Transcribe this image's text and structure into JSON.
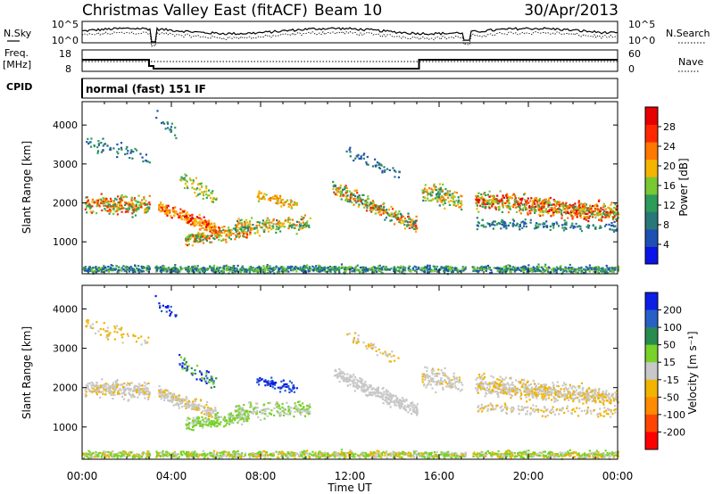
{
  "header": {
    "title": "Christmas Valley East (fitACF)",
    "beam": "Beam 10",
    "date": "30/Apr/2013"
  },
  "noise_panel": {
    "left_label": "N.Sky",
    "right_label": "N.Search",
    "left_ticks": [
      "10^5",
      "10^0"
    ],
    "right_ticks": [
      "10^5",
      "10^0"
    ]
  },
  "freq_panel": {
    "left_label_1": "Freq.",
    "left_label_2": "[MHz]",
    "right_label": "Nave",
    "left_ticks": [
      "18",
      "8"
    ],
    "right_ticks": [
      "60",
      "0"
    ]
  },
  "cpid": {
    "label": "CPID",
    "value": "normal (fast) 151 IF"
  },
  "colors": {
    "power_scale": [
      "#0a14e6",
      "#1e50b4",
      "#287878",
      "#2d9b5a",
      "#78c832",
      "#f5b400",
      "#ff7800",
      "#ff2800",
      "#e60000"
    ],
    "velocity_scale": [
      "#0a1ee6",
      "#2860c8",
      "#288c50",
      "#78d228",
      "#c8c8c8",
      "#f0b400",
      "#ff8c00",
      "#ff4600",
      "#ff0000"
    ]
  },
  "chart_data": [
    {
      "type": "heatmap",
      "title": "",
      "xlabel": "Time UT",
      "ylabel": "Slant Range [km]",
      "x_ticks": [
        "00:00",
        "04:00",
        "08:00",
        "12:00",
        "16:00",
        "20:00",
        "00:00"
      ],
      "xlim_hours": [
        0,
        24
      ],
      "ylim_km": [
        180,
        4600
      ],
      "y_ticks": [
        "1000",
        "2000",
        "3000",
        "4000"
      ],
      "y_tick_values": [
        1000,
        2000,
        3000,
        4000
      ],
      "colorbar_label": "Power [dB]",
      "colorbar_ticks": [
        "4",
        "8",
        "12",
        "16",
        "20",
        "24",
        "28"
      ],
      "colorbar_range": [
        0,
        32
      ]
    },
    {
      "type": "heatmap",
      "title": "",
      "xlabel": "Time UT",
      "ylabel": "Slant Range [km]",
      "x_ticks": [
        "00:00",
        "04:00",
        "08:00",
        "12:00",
        "16:00",
        "20:00",
        "00:00"
      ],
      "xlim_hours": [
        0,
        24
      ],
      "ylim_km": [
        180,
        4600
      ],
      "y_ticks": [
        "1000",
        "2000",
        "3000",
        "4000"
      ],
      "y_tick_values": [
        1000,
        2000,
        3000,
        4000
      ],
      "colorbar_label": "Velocity [m s⁻¹]",
      "colorbar_ticks": [
        "200",
        "100",
        "50",
        "15",
        "-15",
        "-50",
        "-100",
        "-200"
      ]
    }
  ]
}
